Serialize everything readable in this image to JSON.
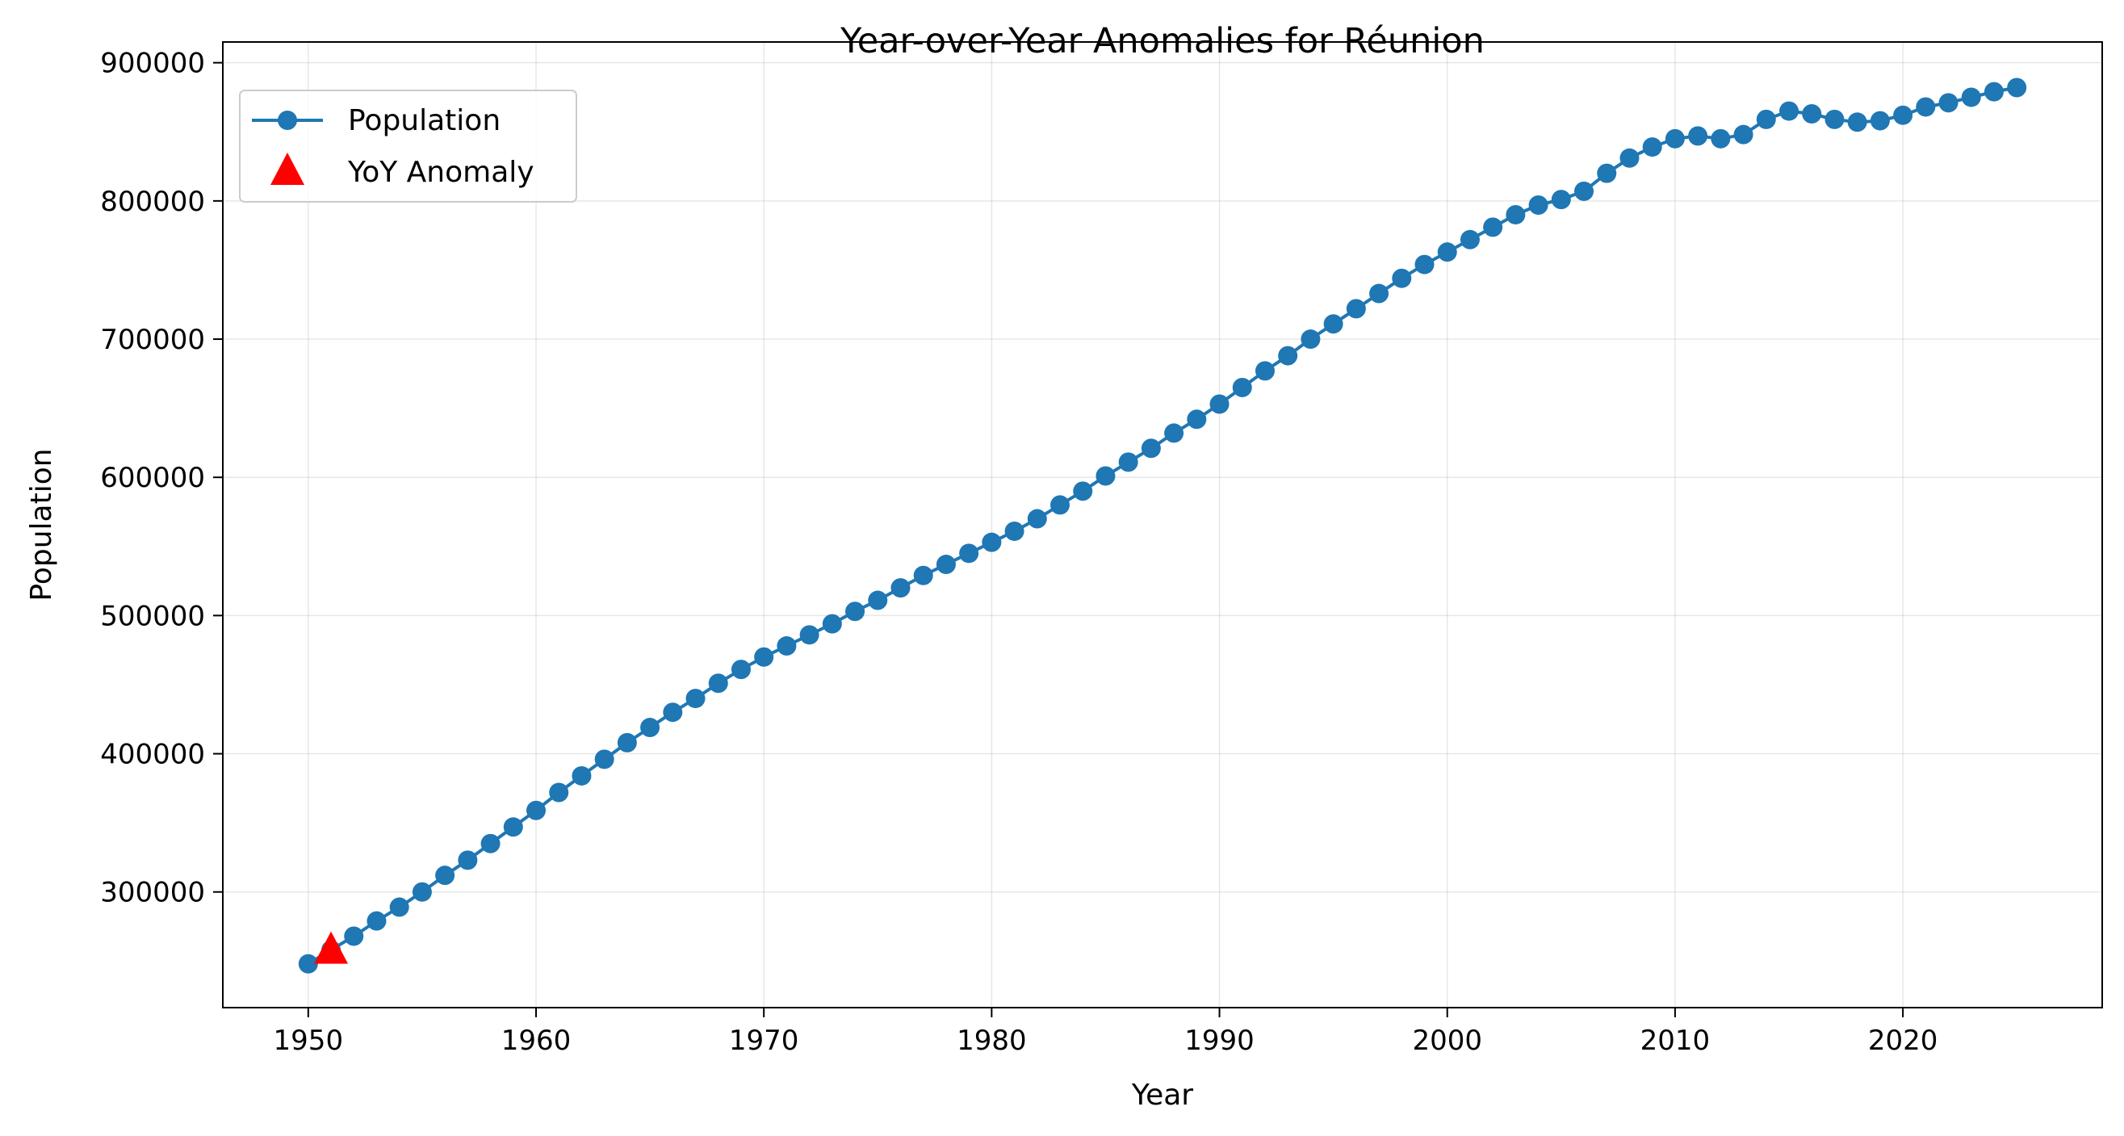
{
  "chart_data": {
    "type": "line",
    "title": "Year-over-Year Anomalies for Réunion",
    "xlabel": "Year",
    "ylabel": "Population",
    "xlim": [
      1946.25,
      2028.75
    ],
    "ylim": [
      216300,
      915000
    ],
    "x_ticks": [
      1950,
      1960,
      1970,
      1980,
      1990,
      2000,
      2010,
      2020
    ],
    "y_ticks": [
      300000,
      400000,
      500000,
      600000,
      700000,
      800000,
      900000
    ],
    "grid": true,
    "legend_position": "top-left",
    "series": [
      {
        "name": "Population",
        "color": "#1f77b4",
        "marker": "circle",
        "x": [
          1950,
          1951,
          1952,
          1953,
          1954,
          1955,
          1956,
          1957,
          1958,
          1959,
          1960,
          1961,
          1962,
          1963,
          1964,
          1965,
          1966,
          1967,
          1968,
          1969,
          1970,
          1971,
          1972,
          1973,
          1974,
          1975,
          1976,
          1977,
          1978,
          1979,
          1980,
          1981,
          1982,
          1983,
          1984,
          1985,
          1986,
          1987,
          1988,
          1989,
          1990,
          1991,
          1992,
          1993,
          1994,
          1995,
          1996,
          1997,
          1998,
          1999,
          2000,
          2001,
          2002,
          2003,
          2004,
          2005,
          2006,
          2007,
          2008,
          2009,
          2010,
          2011,
          2012,
          2013,
          2014,
          2015,
          2016,
          2017,
          2018,
          2019,
          2020,
          2021,
          2022,
          2023,
          2024,
          2025
        ],
        "y": [
          248000,
          258000,
          268000,
          279000,
          289000,
          300000,
          312000,
          323000,
          335000,
          347000,
          359000,
          372000,
          384000,
          396000,
          408000,
          419000,
          430000,
          440000,
          451000,
          461000,
          470000,
          478000,
          486000,
          494000,
          503000,
          511000,
          520000,
          529000,
          537000,
          545000,
          553000,
          561000,
          570000,
          580000,
          590000,
          601000,
          611000,
          621000,
          632000,
          642000,
          653000,
          665000,
          677000,
          688000,
          700000,
          711000,
          722000,
          733000,
          744000,
          754000,
          763000,
          772000,
          781000,
          790000,
          797000,
          801000,
          807000,
          820000,
          831000,
          839000,
          845000,
          847000,
          845000,
          848000,
          859000,
          865000,
          863000,
          859000,
          857000,
          858000,
          862000,
          868000,
          871000,
          875000,
          879000,
          882000
        ]
      },
      {
        "name": "YoY Anomaly",
        "color": "#ff0000",
        "marker": "triangle",
        "x": [
          1951
        ],
        "y": [
          258000
        ]
      }
    ]
  }
}
